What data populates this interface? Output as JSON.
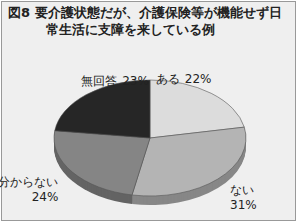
{
  "chart_data": {
    "type": "pie",
    "title": "図8 要介護状態だが、介護保険等が機能せず日常生活に支障を来している例",
    "categories": [
      "ある",
      "ない",
      "分からない",
      "無回答"
    ],
    "values": [
      22,
      31,
      24,
      23
    ],
    "value_labels": [
      "22%",
      "31%",
      "24%",
      "23%"
    ],
    "colors": [
      "#dcdcdc",
      "#b4b4b4",
      "#858585",
      "#262626"
    ],
    "data_labels": true
  }
}
